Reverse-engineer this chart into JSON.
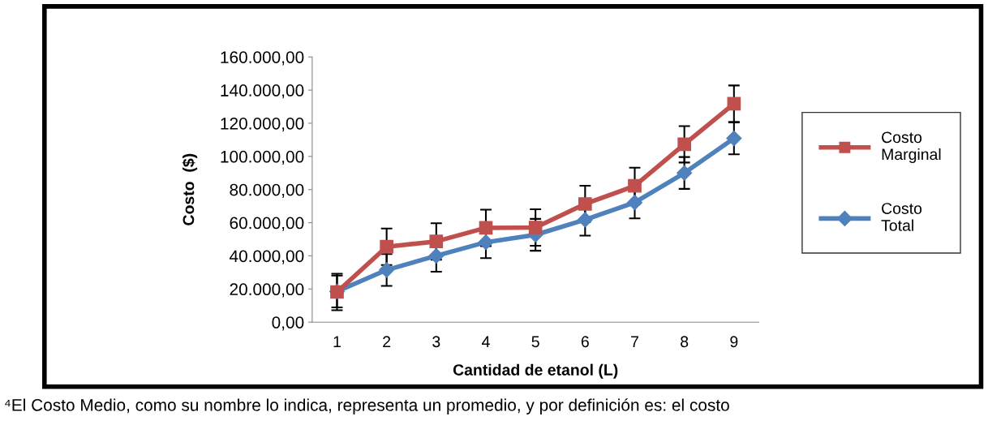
{
  "chart_data": {
    "type": "line",
    "xlabel": "Cantidad de etanol (L)",
    "ylabel": "Costo  ($)",
    "categories": [
      "1",
      "2",
      "3",
      "4",
      "5",
      "6",
      "7",
      "8",
      "9"
    ],
    "series": [
      {
        "name": "Costo\nMarginal",
        "color": "#c0504d",
        "marker": "square",
        "values": [
          18200,
          45500,
          48700,
          56900,
          57100,
          71300,
          82200,
          107300,
          131800
        ],
        "errors": [
          11000,
          11000,
          11000,
          11000,
          11000,
          11000,
          11000,
          11000,
          11000
        ]
      },
      {
        "name": "Costo\nTotal",
        "color": "#4f81bd",
        "marker": "diamond",
        "values": [
          18500,
          31500,
          40000,
          48200,
          52700,
          61800,
          72200,
          90000,
          110900
        ],
        "errors": [
          9600,
          9600,
          9600,
          9600,
          9600,
          9600,
          9600,
          9600,
          9600
        ]
      }
    ],
    "ylim": [
      0,
      160000
    ],
    "yticks": [
      {
        "value": 0,
        "label": "0,00"
      },
      {
        "value": 20000,
        "label": "20.000,00"
      },
      {
        "value": 40000,
        "label": "40.000,00"
      },
      {
        "value": 60000,
        "label": "60.000,00"
      },
      {
        "value": 80000,
        "label": "80.000,00"
      },
      {
        "value": 100000,
        "label": "100.000,00"
      },
      {
        "value": 120000,
        "label": "120.000,00"
      },
      {
        "value": 140000,
        "label": "140.000,00"
      },
      {
        "value": 160000,
        "label": "160.000,00"
      }
    ],
    "grid": false,
    "legend": "right",
    "line_style": "solid",
    "annotations": [
      "⁴El Costo Medio, como su nombre lo indica, representa un promedio, y por definición es: el costo"
    ]
  }
}
